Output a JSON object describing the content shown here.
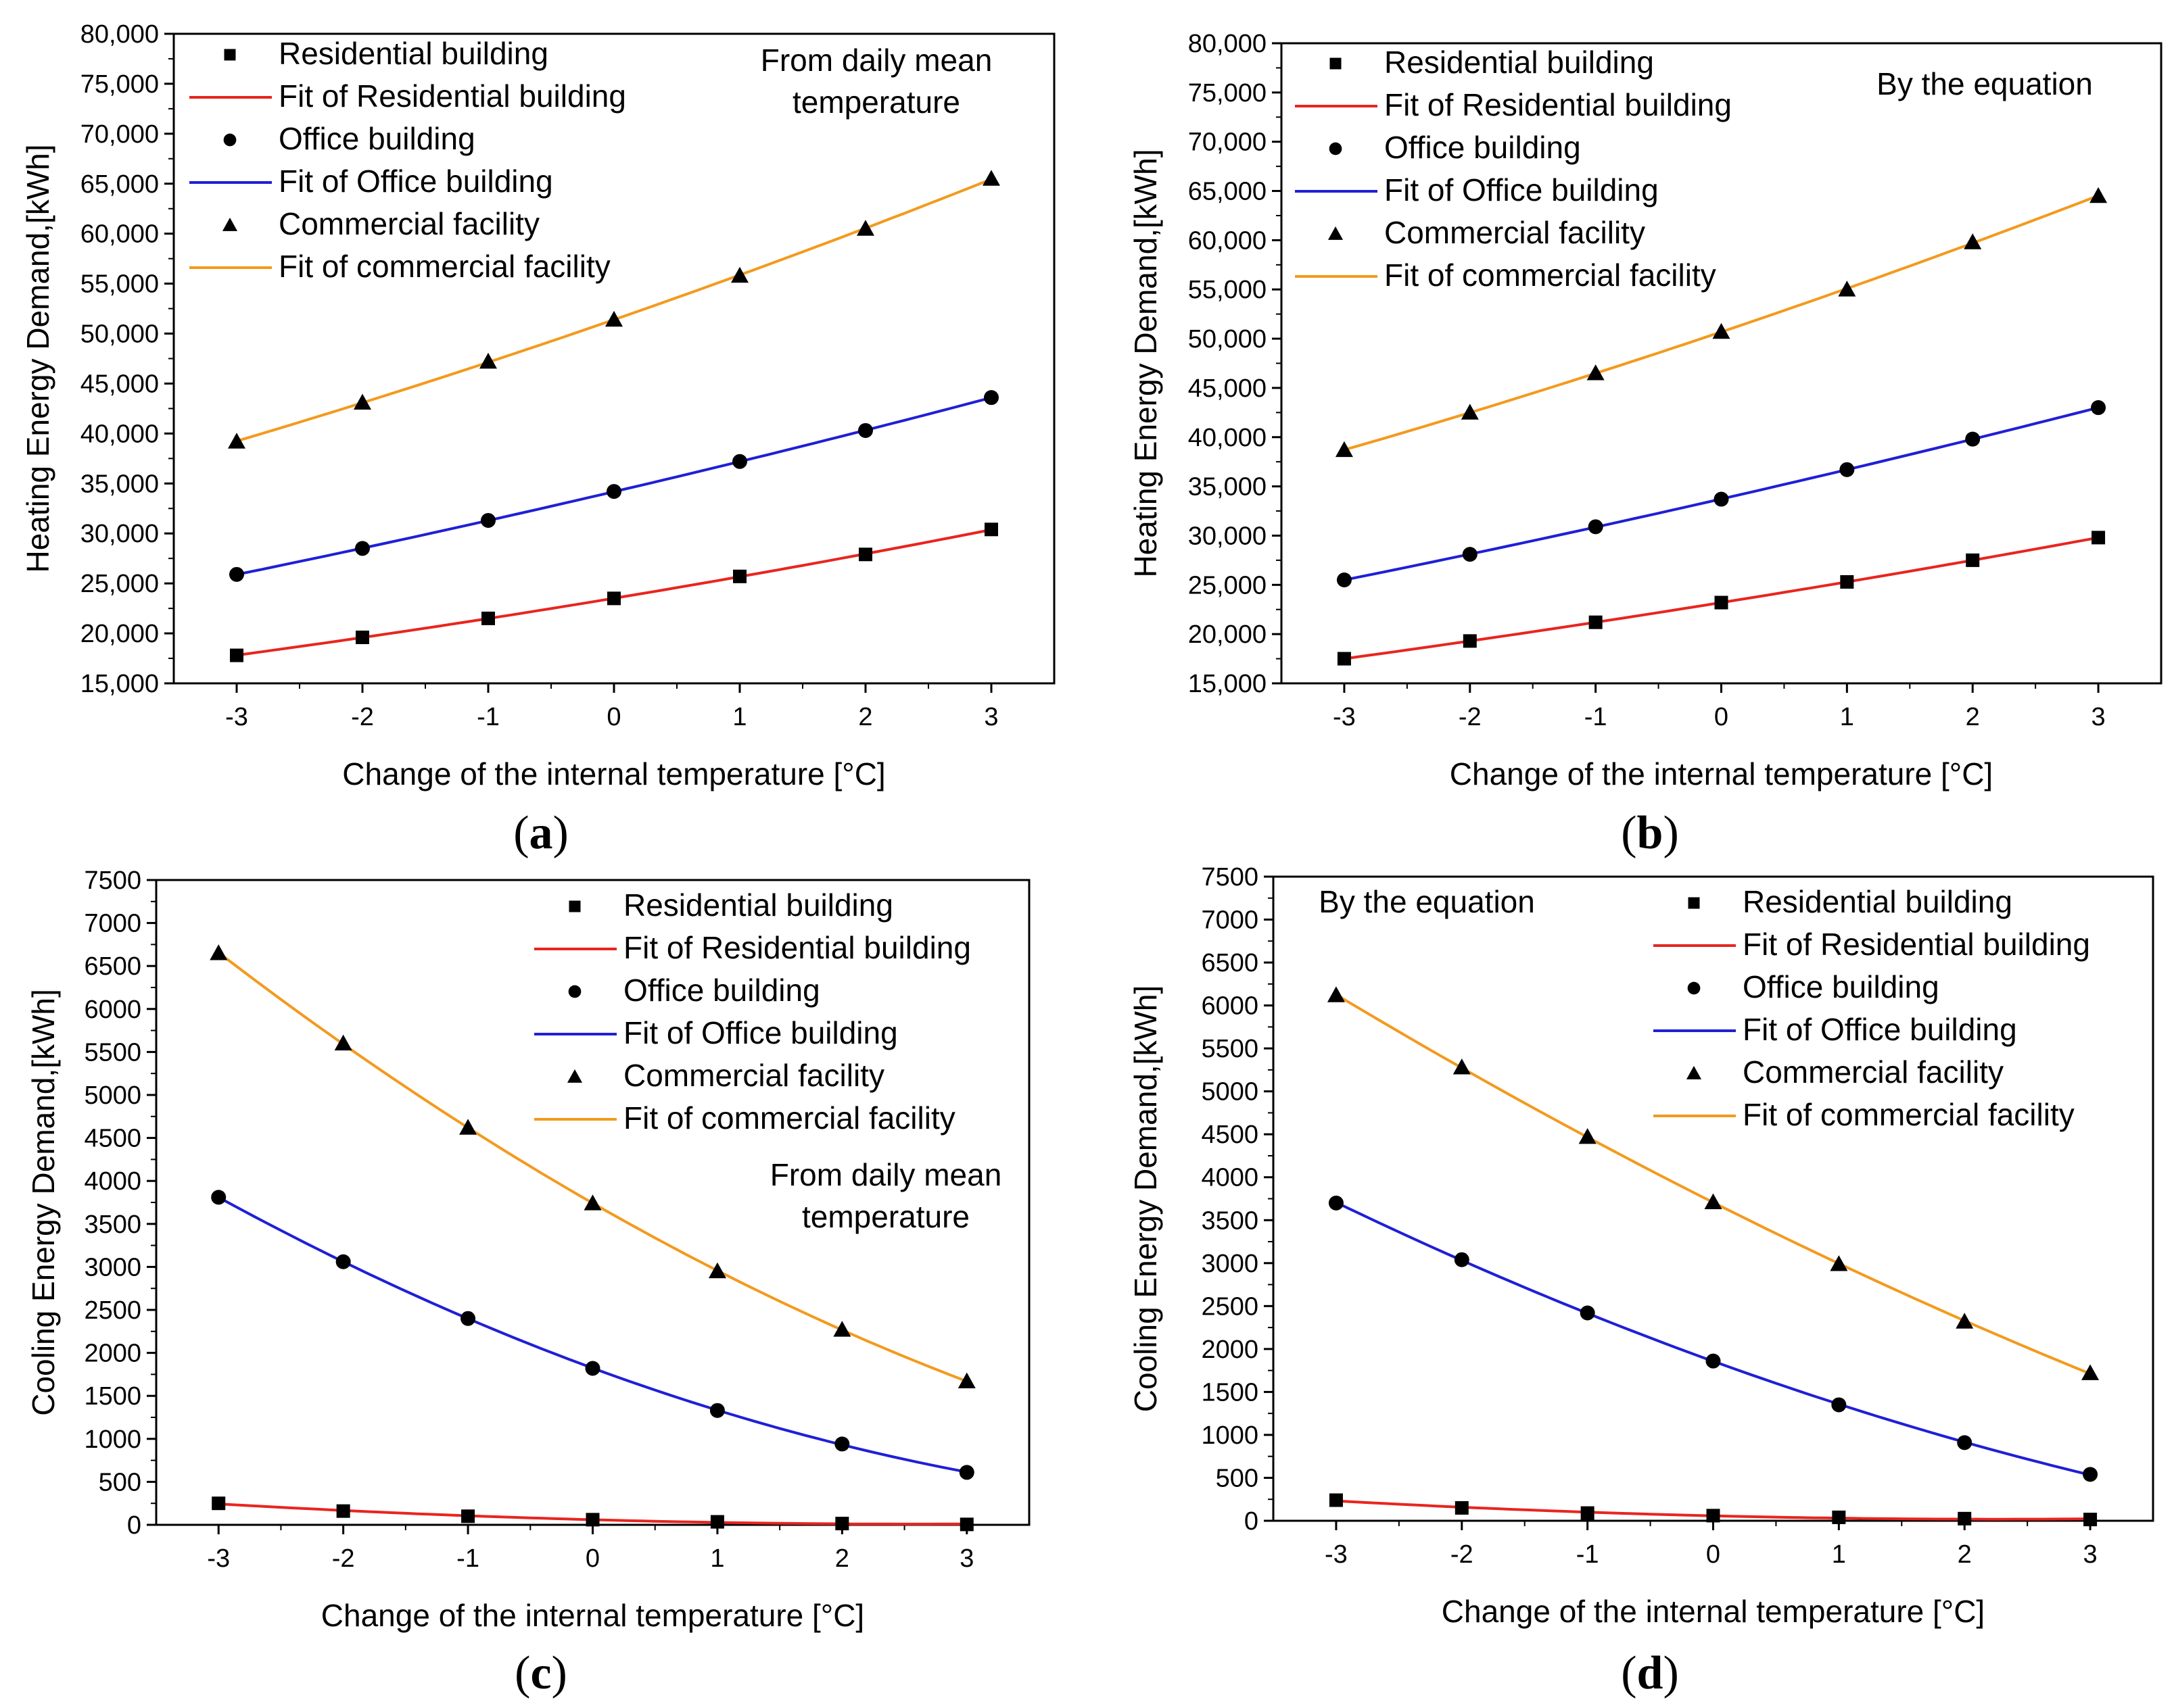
{
  "colors": {
    "residential": "#e8251f",
    "office": "#1f1fd6",
    "commercial": "#f39a1e",
    "markers": "#000000"
  },
  "chart_data": [
    {
      "type": "scatter",
      "panel_label": "a",
      "note": [
        "From daily mean",
        "temperature"
      ],
      "xlabel": "Change of the internal temperature [°C]",
      "ylabel": "Heating Energy Demand,[kWh]",
      "x": [
        -3,
        -2,
        -1,
        0,
        1,
        2,
        3
      ],
      "x_ticks": [
        "-3",
        "-2",
        "-1",
        "0",
        "1",
        "2",
        "3"
      ],
      "xlim": [
        -3.5,
        3.5
      ],
      "ylim": [
        15000,
        80000
      ],
      "y_ticks": [
        15000,
        20000,
        25000,
        30000,
        35000,
        40000,
        45000,
        50000,
        55000,
        60000,
        65000,
        70000,
        75000,
        80000
      ],
      "y_tick_labels": [
        "15,000",
        "20,000",
        "25,000",
        "30,000",
        "35,000",
        "40,000",
        "45,000",
        "50,000",
        "55,000",
        "60,000",
        "65,000",
        "70,000",
        "75,000",
        "80,000"
      ],
      "legend_position": "top-left",
      "series": [
        {
          "name": "Residential building",
          "fit_name": "Fit of Residential building",
          "marker": "square",
          "color_key": "residential",
          "values": [
            17800,
            19600,
            21500,
            23500,
            25700,
            27900,
            30400
          ]
        },
        {
          "name": "Office building",
          "fit_name": "Fit of Office building",
          "marker": "circle",
          "color_key": "office",
          "values": [
            25900,
            28500,
            31300,
            34200,
            37200,
            40300,
            43600
          ]
        },
        {
          "name": "Commercial facility",
          "fit_name": "Fit of commercial facility",
          "marker": "triangle",
          "color_key": "commercial",
          "values": [
            39200,
            43100,
            47200,
            51400,
            55800,
            60500,
            65500
          ]
        }
      ]
    },
    {
      "type": "scatter",
      "panel_label": "b",
      "note": [
        "By the equation"
      ],
      "xlabel": "Change of the internal temperature [°C]",
      "ylabel": "Heating Energy Demand,[kWh]",
      "x": [
        -3,
        -2,
        -1,
        0,
        1,
        2,
        3
      ],
      "x_ticks": [
        "-3",
        "-2",
        "-1",
        "0",
        "1",
        "2",
        "3"
      ],
      "xlim": [
        -3.5,
        3.5
      ],
      "ylim": [
        15000,
        80000
      ],
      "y_ticks": [
        15000,
        20000,
        25000,
        30000,
        35000,
        40000,
        45000,
        50000,
        55000,
        60000,
        65000,
        70000,
        75000,
        80000
      ],
      "y_tick_labels": [
        "15,000",
        "20,000",
        "25,000",
        "30,000",
        "35,000",
        "40,000",
        "45,000",
        "50,000",
        "55,000",
        "60,000",
        "65,000",
        "70,000",
        "75,000",
        "80,000"
      ],
      "legend_position": "top-left",
      "series": [
        {
          "name": "Residential building",
          "fit_name": "Fit of Residential building",
          "marker": "square",
          "color_key": "residential",
          "values": [
            17500,
            19300,
            21200,
            23200,
            25300,
            27500,
            29800
          ]
        },
        {
          "name": "Office building",
          "fit_name": "Fit of Office building",
          "marker": "circle",
          "color_key": "office",
          "values": [
            25500,
            28100,
            30900,
            33700,
            36700,
            39800,
            43000
          ]
        },
        {
          "name": "Commercial facility",
          "fit_name": "Fit of commercial facility",
          "marker": "triangle",
          "color_key": "commercial",
          "values": [
            38700,
            42500,
            46500,
            50700,
            55000,
            59800,
            64500
          ]
        }
      ]
    },
    {
      "type": "scatter",
      "panel_label": "c",
      "note": [
        "From daily mean",
        "temperature"
      ],
      "xlabel": "Change of the internal temperature [°C]",
      "ylabel": "Cooling Energy Demand,[kWh]",
      "x": [
        -3,
        -2,
        -1,
        0,
        1,
        2,
        3
      ],
      "x_ticks": [
        "-3",
        "-2",
        "-1",
        "0",
        "1",
        "2",
        "3"
      ],
      "xlim": [
        -3.5,
        3.5
      ],
      "ylim": [
        0,
        7500
      ],
      "y_ticks": [
        0,
        500,
        1000,
        1500,
        2000,
        2500,
        3000,
        3500,
        4000,
        4500,
        5000,
        5500,
        6000,
        6500,
        7000,
        7500
      ],
      "y_tick_labels": [
        "0",
        "500",
        "1000",
        "1500",
        "2000",
        "2500",
        "3000",
        "3500",
        "4000",
        "4500",
        "5000",
        "5500",
        "6000",
        "6500",
        "7000",
        "7500"
      ],
      "legend_position": "top-right",
      "series": [
        {
          "name": "Residential building",
          "fit_name": "Fit of Residential building",
          "marker": "square",
          "color_key": "residential",
          "values": [
            250,
            160,
            100,
            60,
            35,
            15,
            5
          ]
        },
        {
          "name": "Office building",
          "fit_name": "Fit of Office building",
          "marker": "circle",
          "color_key": "office",
          "values": [
            3810,
            3060,
            2400,
            1820,
            1330,
            940,
            610
          ]
        },
        {
          "name": "Commercial facility",
          "fit_name": "Fit of commercial facility",
          "marker": "triangle",
          "color_key": "commercial",
          "values": [
            6650,
            5600,
            4620,
            3740,
            2950,
            2270,
            1670
          ]
        }
      ]
    },
    {
      "type": "scatter",
      "panel_label": "d",
      "note": [
        "By the equation"
      ],
      "xlabel": "Change of the internal temperature [°C]",
      "ylabel": "Cooling Energy Demand,[kWh]",
      "x": [
        -3,
        -2,
        -1,
        0,
        1,
        2,
        3
      ],
      "x_ticks": [
        "-3",
        "-2",
        "-1",
        "0",
        "1",
        "2",
        "3"
      ],
      "xlim": [
        -3.5,
        3.5
      ],
      "ylim": [
        0,
        7500
      ],
      "y_ticks": [
        0,
        500,
        1000,
        1500,
        2000,
        2500,
        3000,
        3500,
        4000,
        4500,
        5000,
        5500,
        6000,
        6500,
        7000,
        7500
      ],
      "y_tick_labels": [
        "0",
        "500",
        "1000",
        "1500",
        "2000",
        "2500",
        "3000",
        "3500",
        "4000",
        "4500",
        "5000",
        "5500",
        "6000",
        "6500",
        "7000",
        "7500"
      ],
      "legend_position": "top-right",
      "series": [
        {
          "name": "Residential building",
          "fit_name": "Fit of Residential building",
          "marker": "square",
          "color_key": "residential",
          "values": [
            240,
            150,
            90,
            60,
            40,
            25,
            15
          ]
        },
        {
          "name": "Office building",
          "fit_name": "Fit of Office building",
          "marker": "circle",
          "color_key": "office",
          "values": [
            3700,
            3040,
            2420,
            1860,
            1350,
            910,
            540
          ]
        },
        {
          "name": "Commercial facility",
          "fit_name": "Fit of commercial facility",
          "marker": "triangle",
          "color_key": "commercial",
          "values": [
            6120,
            5280,
            4470,
            3710,
            2990,
            2320,
            1720
          ]
        }
      ]
    }
  ]
}
